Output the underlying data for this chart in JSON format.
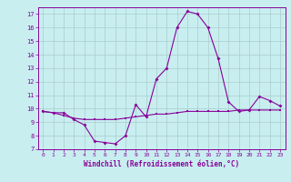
{
  "x_windchill": [
    0,
    1,
    2,
    3,
    4,
    5,
    6,
    7,
    8,
    9,
    10,
    11,
    12,
    13,
    14,
    15,
    16,
    17,
    18,
    19,
    20,
    21,
    22,
    23
  ],
  "y_windchill": [
    9.8,
    9.7,
    9.7,
    9.2,
    8.8,
    7.6,
    7.5,
    7.4,
    8.0,
    10.3,
    9.4,
    12.2,
    13.0,
    16.0,
    17.2,
    17.0,
    16.0,
    13.7,
    10.5,
    9.8,
    9.9,
    10.9,
    10.6,
    10.2
  ],
  "x_temp": [
    0,
    1,
    2,
    3,
    4,
    5,
    6,
    7,
    8,
    9,
    10,
    11,
    12,
    13,
    14,
    15,
    16,
    17,
    18,
    19,
    20,
    21,
    22,
    23
  ],
  "y_temp": [
    9.8,
    9.7,
    9.5,
    9.3,
    9.2,
    9.2,
    9.2,
    9.2,
    9.3,
    9.4,
    9.5,
    9.6,
    9.6,
    9.7,
    9.8,
    9.8,
    9.8,
    9.8,
    9.8,
    9.9,
    9.9,
    9.9,
    9.9,
    9.9
  ],
  "line_color": "#880099",
  "bg_color": "#c8eef0",
  "grid_color": "#aacccc",
  "xlabel": "Windchill (Refroidissement éolien,°C)",
  "ylim": [
    7,
    17.5
  ],
  "xlim": [
    -0.5,
    23.5
  ],
  "yticks": [
    7,
    8,
    9,
    10,
    11,
    12,
    13,
    14,
    15,
    16,
    17
  ],
  "xticks": [
    0,
    1,
    2,
    3,
    4,
    5,
    6,
    7,
    8,
    9,
    10,
    11,
    12,
    13,
    14,
    15,
    16,
    17,
    18,
    19,
    20,
    21,
    22,
    23
  ]
}
